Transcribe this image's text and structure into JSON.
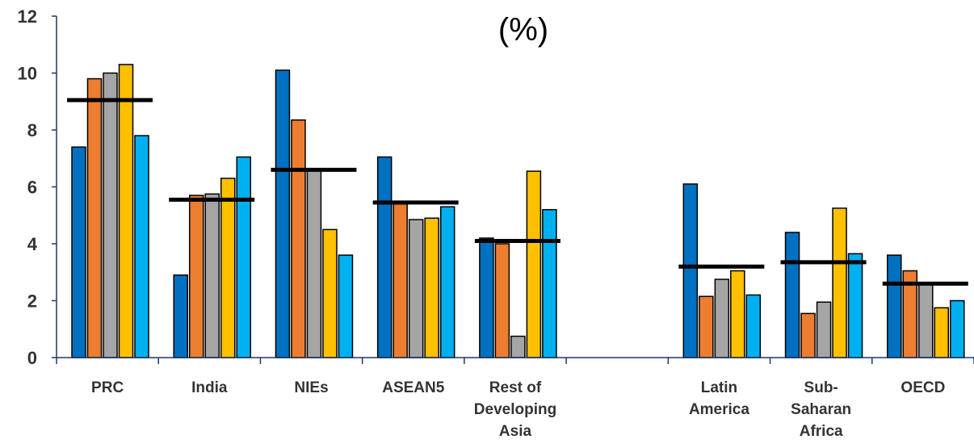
{
  "chart_data": {
    "type": "bar",
    "title": "(%)",
    "xlabel": "",
    "ylabel": "",
    "ylim": [
      0,
      12
    ],
    "yticks": [
      "0",
      "2",
      "4",
      "6",
      "8",
      "10",
      "12"
    ],
    "grid": false,
    "legend": "none",
    "categories": [
      {
        "lines": [
          "PRC"
        ]
      },
      {
        "lines": [
          "India"
        ]
      },
      {
        "lines": [
          "NIEs"
        ]
      },
      {
        "lines": [
          "ASEAN5"
        ]
      },
      {
        "lines": [
          "Rest of",
          "Developing",
          "Asia"
        ]
      },
      {
        "lines": []
      },
      {
        "lines": [
          "Latin",
          "America"
        ]
      },
      {
        "lines": [
          "Sub-",
          "Saharan",
          "Africa"
        ]
      },
      {
        "lines": [
          "OECD"
        ]
      }
    ],
    "series_colors": [
      "#0070C0",
      "#ED7D31",
      "#A5A5A5",
      "#FFC000",
      "#00B0F0"
    ],
    "values": [
      [
        7.4,
        9.8,
        10.0,
        10.3,
        7.8
      ],
      [
        2.9,
        5.7,
        5.75,
        6.3,
        7.05
      ],
      [
        10.1,
        8.35,
        6.6,
        4.5,
        3.6
      ],
      [
        7.05,
        5.4,
        4.85,
        4.9,
        5.3
      ],
      [
        4.2,
        4.0,
        0.75,
        6.55,
        5.2
      ],
      null,
      [
        6.1,
        2.15,
        2.75,
        3.05,
        2.2
      ],
      [
        4.4,
        1.55,
        1.95,
        5.25,
        3.65
      ],
      [
        3.6,
        3.05,
        2.6,
        1.75,
        2.0
      ]
    ],
    "averages": [
      9.05,
      5.55,
      6.6,
      5.45,
      4.1,
      null,
      3.2,
      3.35,
      2.6
    ],
    "average_color": "#000000",
    "axis_color": "#1F3864"
  }
}
